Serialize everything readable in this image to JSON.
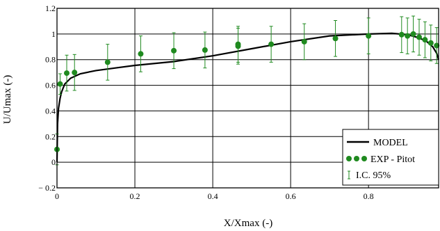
{
  "chart_data": {
    "type": "scatter",
    "xlabel": "X/Xmax (-)",
    "ylabel": "U/Umax (-)",
    "xlim": [
      0,
      0.98
    ],
    "ylim": [
      -0.2,
      1.2
    ],
    "x_ticks": [
      "0",
      "0.2",
      "0.4",
      "0.6",
      "0.8"
    ],
    "y_ticks": [
      "− 0.2",
      "0",
      "0.2",
      "0.4",
      "0.6",
      "0.8",
      "1",
      "1.2"
    ],
    "grid": true,
    "legend_position": "bottom-right",
    "colors": {
      "model": "#000000",
      "experiment": "#1f8a1f",
      "frame": "#000000"
    },
    "legend": [
      "MODEL",
      "EXP - Pitot",
      "I.C. 95%"
    ],
    "series": [
      {
        "name": "MODEL",
        "kind": "line",
        "x": [
          0.0,
          0.0015,
          0.004,
          0.008,
          0.012,
          0.02,
          0.035,
          0.06,
          0.1,
          0.15,
          0.2,
          0.3,
          0.4,
          0.5,
          0.6,
          0.7,
          0.8,
          0.86,
          0.9,
          0.93,
          0.95,
          0.965,
          0.975,
          0.98
        ],
        "y": [
          0.0,
          0.3,
          0.42,
          0.5,
          0.55,
          0.61,
          0.655,
          0.69,
          0.715,
          0.735,
          0.755,
          0.785,
          0.83,
          0.885,
          0.94,
          0.985,
          1.0,
          1.005,
          0.995,
          0.97,
          0.94,
          0.9,
          0.85,
          0.8
        ]
      },
      {
        "name": "EXP - Pitot",
        "kind": "scatter_errorbar",
        "x": [
          0.0,
          0.008,
          0.025,
          0.045,
          0.13,
          0.215,
          0.3,
          0.38,
          0.465,
          0.465,
          0.55,
          0.635,
          0.715,
          0.8,
          0.885,
          0.9,
          0.915,
          0.93,
          0.945,
          0.96,
          0.975
        ],
        "y": [
          0.1,
          0.61,
          0.695,
          0.7,
          0.78,
          0.845,
          0.87,
          0.875,
          0.92,
          0.905,
          0.92,
          0.94,
          0.965,
          0.985,
          0.995,
          0.985,
          1.0,
          0.975,
          0.955,
          0.93,
          0.91
        ],
        "err": [
          0.12,
          0.08,
          0.14,
          0.14,
          0.14,
          0.14,
          0.14,
          0.14,
          0.14,
          0.14,
          0.14,
          0.14,
          0.14,
          0.14,
          0.14,
          0.14,
          0.14,
          0.14,
          0.14,
          0.14,
          0.14
        ]
      }
    ]
  }
}
